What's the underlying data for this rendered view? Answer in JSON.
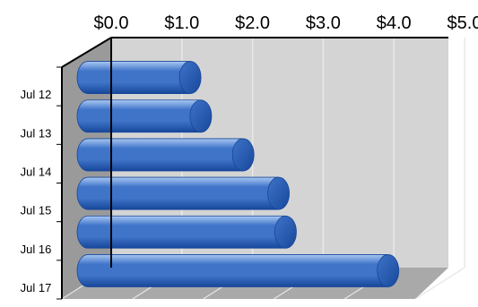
{
  "chart_data": {
    "type": "bar",
    "orientation": "horizontal",
    "style": "3d-cylinder",
    "categories": [
      "Jul 12",
      "Jul 13",
      "Jul 14",
      "Jul 15",
      "Jul 16",
      "Jul 17"
    ],
    "values": [
      1.6,
      1.75,
      2.35,
      2.85,
      2.95,
      4.4
    ],
    "xlim": [
      0,
      5
    ],
    "x_ticks": [
      "$0.0",
      "$1.0",
      "$2.0",
      "$3.0",
      "$4.0",
      "$5.0"
    ],
    "x_axis_position": "top",
    "title": "",
    "xlabel": "",
    "ylabel": "",
    "grid": true,
    "legend": "none",
    "colors": {
      "bar": "#3f74c9",
      "bar_light": "#a9c8f2",
      "bar_dark": "#17479a",
      "wall": "#d4d4d4",
      "side_wall": "#9a9a9a",
      "floor": "#a9a9a9",
      "gridline": "#e8e8e8"
    }
  }
}
